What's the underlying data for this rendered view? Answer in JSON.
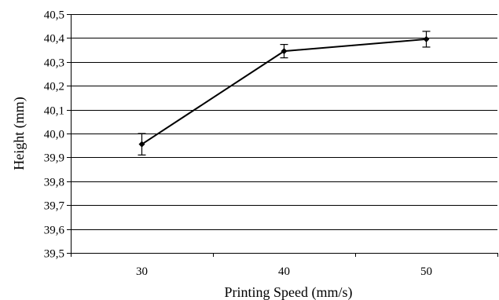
{
  "chart_data": {
    "type": "line",
    "title": "",
    "xlabel": "Printing Speed (mm/s)",
    "ylabel": "Height (mm)",
    "x": [
      30,
      40,
      50
    ],
    "x_tick_labels": [
      "30",
      "40",
      "50"
    ],
    "xlim": [
      25,
      55
    ],
    "ylim": [
      39.5,
      40.5
    ],
    "y_ticks": [
      39.5,
      39.6,
      39.7,
      39.8,
      39.9,
      40.0,
      40.1,
      40.2,
      40.3,
      40.4,
      40.5
    ],
    "y_tick_labels": [
      "39,5",
      "39,6",
      "39,7",
      "39,8",
      "39,9",
      "40,0",
      "40,1",
      "40,2",
      "40,3",
      "40,4",
      "40,5"
    ],
    "grid": "horizontal",
    "series": [
      {
        "values": [
          39.955,
          40.345,
          40.395
        ],
        "error": [
          0.045,
          0.028,
          0.033
        ],
        "color": "#000000",
        "marker": "diamond"
      }
    ]
  }
}
